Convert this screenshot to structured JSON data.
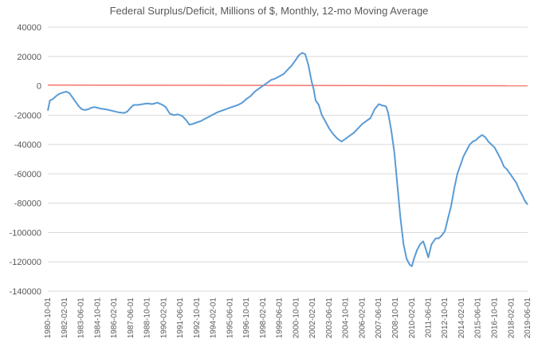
{
  "chart_data": {
    "type": "line",
    "title": "Federal Surplus/Deficit, Millions of $, Monthly, 12-mo Moving Average",
    "xlabel": "",
    "ylabel": "",
    "ylim": [
      -140000,
      40000
    ],
    "y_ticks": [
      40000,
      20000,
      0,
      -20000,
      -40000,
      -60000,
      -80000,
      -100000,
      -120000,
      -140000
    ],
    "y_tick_labels": [
      "40000",
      "20000",
      "0",
      "-20000",
      "-40000",
      "-60000",
      "-80000",
      "-100000",
      "-120000",
      "-140000"
    ],
    "x_range": [
      "1980-10-01",
      "2019-06-01"
    ],
    "x_tick_labels": [
      "1980-10-01",
      "1982-02-01",
      "1983-06-01",
      "1984-10-01",
      "1986-02-01",
      "1987-06-01",
      "1988-10-01",
      "1990-02-01",
      "1991-06-01",
      "1992-10-01",
      "1994-02-01",
      "1995-06-01",
      "1996-10-01",
      "1998-02-01",
      "1999-06-01",
      "2000-10-01",
      "2002-02-01",
      "2003-06-01",
      "2004-10-01",
      "2006-02-01",
      "2007-06-01",
      "2008-10-01",
      "2010-02-01",
      "2011-06-01",
      "2012-10-01",
      "2014-02-01",
      "2015-06-01",
      "2016-10-01",
      "2018-02-01",
      "2019-06-01"
    ],
    "grid": "horizontal",
    "colors": {
      "series": "#5b9bd5",
      "zero_line": "#f4736b"
    },
    "reference_line": {
      "y_start": 500,
      "y_end": 0
    },
    "series": [
      {
        "points": [
          [
            "1980-10-01",
            -17000
          ],
          [
            "1980-12-01",
            -10000
          ],
          [
            "1981-03-01",
            -9000
          ],
          [
            "1981-06-01",
            -7000
          ],
          [
            "1981-09-01",
            -5500
          ],
          [
            "1982-01-01",
            -4500
          ],
          [
            "1982-04-01",
            -4000
          ],
          [
            "1982-07-01",
            -5000
          ],
          [
            "1982-10-01",
            -8000
          ],
          [
            "1983-01-01",
            -11000
          ],
          [
            "1983-04-01",
            -14000
          ],
          [
            "1983-07-01",
            -16000
          ],
          [
            "1983-10-01",
            -16500
          ],
          [
            "1984-01-01",
            -16000
          ],
          [
            "1984-04-01",
            -15000
          ],
          [
            "1984-07-01",
            -14500
          ],
          [
            "1984-10-01",
            -15000
          ],
          [
            "1985-01-01",
            -15500
          ],
          [
            "1985-06-01",
            -16000
          ],
          [
            "1985-12-01",
            -17000
          ],
          [
            "1986-06-01",
            -18000
          ],
          [
            "1986-12-01",
            -18500
          ],
          [
            "1987-03-01",
            -17500
          ],
          [
            "1987-06-01",
            -15000
          ],
          [
            "1987-09-01",
            -13000
          ],
          [
            "1988-01-01",
            -13000
          ],
          [
            "1988-06-01",
            -12500
          ],
          [
            "1988-10-01",
            -12000
          ],
          [
            "1989-03-01",
            -12500
          ],
          [
            "1989-08-01",
            -11500
          ],
          [
            "1990-01-01",
            -13000
          ],
          [
            "1990-04-01",
            -14500
          ],
          [
            "1990-08-01",
            -19000
          ],
          [
            "1990-12-01",
            -20000
          ],
          [
            "1991-04-01",
            -19500
          ],
          [
            "1991-08-01",
            -20500
          ],
          [
            "1991-12-01",
            -23500
          ],
          [
            "1992-03-01",
            -26500
          ],
          [
            "1992-06-01",
            -26000
          ],
          [
            "1992-10-01",
            -25000
          ],
          [
            "1993-02-01",
            -24000
          ],
          [
            "1993-06-01",
            -22500
          ],
          [
            "1993-10-01",
            -21000
          ],
          [
            "1994-02-01",
            -19500
          ],
          [
            "1994-06-01",
            -18000
          ],
          [
            "1994-10-01",
            -17000
          ],
          [
            "1995-02-01",
            -16000
          ],
          [
            "1995-06-01",
            -15000
          ],
          [
            "1995-10-01",
            -14000
          ],
          [
            "1996-02-01",
            -13000
          ],
          [
            "1996-06-01",
            -11500
          ],
          [
            "1996-10-01",
            -9000
          ],
          [
            "1997-02-01",
            -7000
          ],
          [
            "1997-06-01",
            -4000
          ],
          [
            "1997-10-01",
            -2000
          ],
          [
            "1998-02-01",
            0
          ],
          [
            "1998-06-01",
            2000
          ],
          [
            "1998-10-01",
            4000
          ],
          [
            "1999-02-01",
            5000
          ],
          [
            "1999-06-01",
            6500
          ],
          [
            "1999-10-01",
            8000
          ],
          [
            "2000-02-01",
            11000
          ],
          [
            "2000-06-01",
            14000
          ],
          [
            "2000-10-01",
            18000
          ],
          [
            "2001-01-01",
            21000
          ],
          [
            "2001-04-01",
            22500
          ],
          [
            "2001-07-01",
            21500
          ],
          [
            "2001-10-01",
            14000
          ],
          [
            "2002-01-01",
            3000
          ],
          [
            "2002-03-01",
            -2000
          ],
          [
            "2002-05-01",
            -10000
          ],
          [
            "2002-08-01",
            -13000
          ],
          [
            "2002-11-01",
            -20000
          ],
          [
            "2003-03-01",
            -25000
          ],
          [
            "2003-06-01",
            -29000
          ],
          [
            "2003-10-01",
            -33000
          ],
          [
            "2004-02-01",
            -36000
          ],
          [
            "2004-06-01",
            -38000
          ],
          [
            "2004-10-01",
            -36000
          ],
          [
            "2005-02-01",
            -34000
          ],
          [
            "2005-06-01",
            -32000
          ],
          [
            "2005-10-01",
            -29000
          ],
          [
            "2006-02-01",
            -26000
          ],
          [
            "2006-06-01",
            -24000
          ],
          [
            "2006-10-01",
            -22000
          ],
          [
            "2007-02-01",
            -16000
          ],
          [
            "2007-06-01",
            -12500
          ],
          [
            "2007-10-01",
            -13500
          ],
          [
            "2008-01-01",
            -14000
          ],
          [
            "2008-03-01",
            -18000
          ],
          [
            "2008-06-01",
            -30000
          ],
          [
            "2008-09-01",
            -45000
          ],
          [
            "2008-12-01",
            -68000
          ],
          [
            "2009-03-01",
            -90000
          ],
          [
            "2009-06-01",
            -108000
          ],
          [
            "2009-09-01",
            -118000
          ],
          [
            "2009-12-01",
            -122000
          ],
          [
            "2010-02-01",
            -123000
          ],
          [
            "2010-04-01",
            -118000
          ],
          [
            "2010-07-01",
            -112000
          ],
          [
            "2010-10-01",
            -108000
          ],
          [
            "2011-01-01",
            -106000
          ],
          [
            "2011-03-01",
            -110000
          ],
          [
            "2011-06-01",
            -117000
          ],
          [
            "2011-09-01",
            -108000
          ],
          [
            "2012-01-01",
            -104000
          ],
          [
            "2012-04-01",
            -104000
          ],
          [
            "2012-07-01",
            -102000
          ],
          [
            "2012-10-01",
            -99000
          ],
          [
            "2013-01-01",
            -90000
          ],
          [
            "2013-04-01",
            -82000
          ],
          [
            "2013-07-01",
            -70000
          ],
          [
            "2013-10-01",
            -60000
          ],
          [
            "2014-01-01",
            -54000
          ],
          [
            "2014-04-01",
            -48000
          ],
          [
            "2014-07-01",
            -44000
          ],
          [
            "2014-10-01",
            -40000
          ],
          [
            "2015-01-01",
            -38000
          ],
          [
            "2015-04-01",
            -37000
          ],
          [
            "2015-07-01",
            -35000
          ],
          [
            "2015-10-01",
            -33500
          ],
          [
            "2016-01-01",
            -35000
          ],
          [
            "2016-04-01",
            -38000
          ],
          [
            "2016-07-01",
            -40000
          ],
          [
            "2016-10-01",
            -42000
          ],
          [
            "2017-01-01",
            -46000
          ],
          [
            "2017-04-01",
            -50000
          ],
          [
            "2017-07-01",
            -55000
          ],
          [
            "2017-10-01",
            -57000
          ],
          [
            "2018-01-01",
            -60000
          ],
          [
            "2018-04-01",
            -63000
          ],
          [
            "2018-07-01",
            -66000
          ],
          [
            "2018-10-01",
            -71000
          ],
          [
            "2019-01-01",
            -75000
          ],
          [
            "2019-03-01",
            -78000
          ],
          [
            "2019-05-01",
            -80000
          ],
          [
            "2019-06-01",
            -81000
          ]
        ]
      }
    ]
  }
}
